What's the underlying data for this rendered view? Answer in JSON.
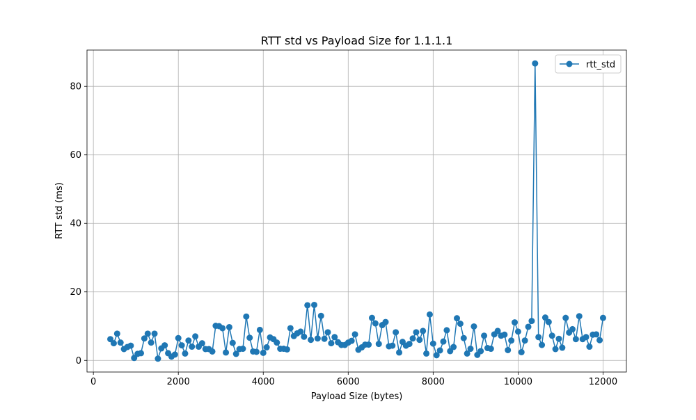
{
  "chart_data": {
    "type": "line",
    "title": "RTT std vs Payload Size for 1.1.1.1",
    "xlabel": "Payload Size (bytes)",
    "ylabel": "RTT std (ms)",
    "xlim": [
      -150,
      12550
    ],
    "ylim": [
      -3.4,
      90.6
    ],
    "grid": true,
    "legend_position": "top-right",
    "xticks": [
      0,
      2000,
      4000,
      6000,
      8000,
      10000,
      12000
    ],
    "yticks": [
      0,
      20,
      40,
      60,
      80
    ],
    "xtick_labels": [
      "0",
      "2000",
      "4000",
      "6000",
      "8000",
      "10000",
      "12000"
    ],
    "ytick_labels": [
      "0",
      "20",
      "40",
      "60",
      "80"
    ],
    "series": [
      {
        "name": "rtt_std",
        "color": "#1f77b4",
        "marker": "circle",
        "x": [
          400,
          480,
          560,
          640,
          720,
          800,
          880,
          960,
          1040,
          1120,
          1200,
          1280,
          1360,
          1440,
          1520,
          1600,
          1680,
          1760,
          1840,
          1920,
          2000,
          2080,
          2160,
          2240,
          2320,
          2400,
          2480,
          2560,
          2640,
          2720,
          2800,
          2880,
          2960,
          3040,
          3120,
          3200,
          3280,
          3360,
          3440,
          3520,
          3600,
          3680,
          3760,
          3840,
          3920,
          4000,
          4080,
          4160,
          4240,
          4320,
          4400,
          4480,
          4560,
          4640,
          4720,
          4800,
          4880,
          4960,
          5040,
          5120,
          5200,
          5280,
          5360,
          5440,
          5520,
          5600,
          5680,
          5760,
          5840,
          5920,
          6000,
          6080,
          6160,
          6240,
          6320,
          6400,
          6480,
          6560,
          6640,
          6720,
          6800,
          6880,
          6960,
          7040,
          7120,
          7200,
          7280,
          7360,
          7440,
          7520,
          7600,
          7680,
          7760,
          7840,
          7920,
          8000,
          8080,
          8160,
          8240,
          8320,
          8400,
          8480,
          8560,
          8640,
          8720,
          8800,
          8880,
          8960,
          9040,
          9120,
          9200,
          9280,
          9360,
          9440,
          9520,
          9600,
          9680,
          9760,
          9840,
          9920,
          10000,
          10080,
          10160,
          10240,
          10320,
          10400,
          10480,
          10560,
          10640,
          10720,
          10800,
          10880,
          10960,
          11040,
          11120,
          11200,
          11280,
          11360,
          11440,
          11520,
          11600,
          11680,
          11760,
          11840,
          11920,
          12000
        ],
        "y": [
          6.2,
          5.0,
          7.8,
          5.2,
          3.3,
          3.9,
          4.3,
          0.7,
          1.9,
          2.1,
          6.4,
          7.8,
          5.2,
          7.8,
          0.5,
          3.5,
          4.4,
          2.1,
          1.1,
          1.7,
          6.5,
          4.4,
          2.0,
          5.8,
          4.0,
          7.0,
          4.0,
          5.0,
          3.3,
          3.3,
          2.6,
          10.1,
          10.0,
          9.4,
          2.3,
          9.7,
          5.1,
          1.9,
          3.3,
          3.4,
          12.8,
          6.6,
          2.6,
          2.5,
          8.9,
          2.2,
          3.8,
          6.7,
          6.2,
          5.2,
          3.4,
          3.4,
          3.2,
          9.4,
          7.1,
          7.9,
          8.4,
          6.9,
          16.1,
          6.0,
          16.2,
          6.4,
          13.0,
          6.3,
          8.2,
          5.0,
          6.8,
          5.3,
          4.5,
          4.5,
          5.2,
          5.7,
          7.6,
          3.1,
          3.8,
          4.6,
          4.6,
          12.4,
          10.8,
          4.8,
          10.3,
          11.2,
          4.1,
          4.3,
          8.2,
          2.3,
          5.4,
          4.3,
          4.8,
          6.4,
          8.2,
          6.0,
          8.6,
          2.0,
          13.4,
          4.9,
          1.5,
          2.9,
          5.5,
          8.8,
          2.7,
          3.9,
          12.3,
          10.7,
          6.5,
          2.0,
          3.4,
          9.9,
          1.6,
          2.7,
          7.2,
          3.6,
          3.4,
          7.6,
          8.6,
          7.2,
          7.5,
          3.0,
          5.8,
          11.1,
          8.4,
          2.4,
          5.8,
          9.8,
          11.5,
          86.7,
          6.8,
          4.5,
          12.5,
          11.2,
          7.2,
          3.3,
          6.3,
          3.7,
          12.4,
          8.1,
          9.1,
          6.2,
          12.9,
          6.2,
          6.8,
          4.0,
          7.5,
          7.6,
          5.9,
          12.4
        ]
      }
    ]
  }
}
